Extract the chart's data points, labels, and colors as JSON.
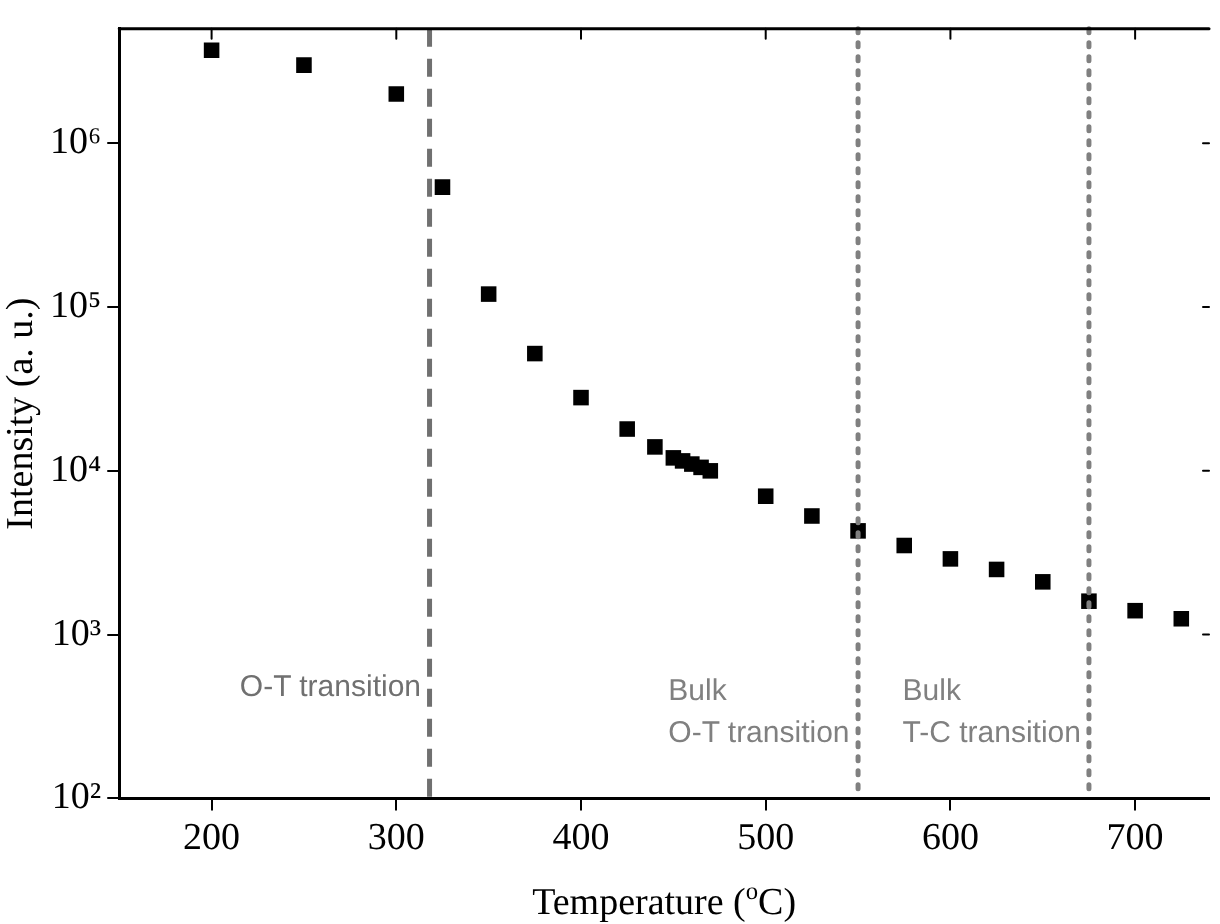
{
  "chart_data": {
    "type": "scatter",
    "xlabel": "Temperature ($^{o}$C)",
    "ylabel": "Intensity (a. u.)",
    "x": [
      200,
      250,
      300,
      325,
      350,
      375,
      400,
      425,
      440,
      450,
      455,
      460,
      465,
      470,
      500,
      525,
      550,
      575,
      600,
      625,
      650,
      675,
      700,
      725
    ],
    "series": [
      {
        "color": "#000000",
        "values": [
          3700000,
          3000000,
          2000000,
          540000,
          120000,
          52000,
          28000,
          18000,
          14000,
          12000,
          11500,
          11000,
          10500,
          10000,
          7000,
          5300,
          4300,
          3500,
          2900,
          2500,
          2100,
          1600,
          1400,
          1250
        ]
      }
    ],
    "xlim": [
      150,
      740
    ],
    "xticks": [
      200,
      300,
      400,
      500,
      600,
      700
    ],
    "ylim": [
      100,
      5000000
    ],
    "yticks": [
      {
        "value": 100,
        "label": "10²"
      },
      {
        "value": 1000,
        "label": "10³"
      },
      {
        "value": 10000,
        "label": "10⁴"
      },
      {
        "value": 100000,
        "label": "10⁵"
      },
      {
        "value": 1000000,
        "label": "10⁶"
      }
    ],
    "log": "y",
    "grid": false,
    "legend": false,
    "marker": "square",
    "ref_lines": [
      {
        "axis": "x",
        "value": 318,
        "label": "O-T transition",
        "color": "#707070",
        "line_style": "dashed"
      },
      {
        "axis": "x",
        "value": 550,
        "label": "Bulk\nO-T transition",
        "color": "#808080",
        "line_style": "dotted"
      },
      {
        "axis": "x",
        "value": 675,
        "label": "Bulk\nT-C transition",
        "color": "#808080",
        "line_style": "dotted"
      }
    ]
  }
}
